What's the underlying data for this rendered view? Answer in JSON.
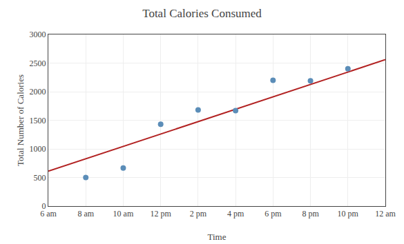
{
  "chart_data": {
    "type": "scatter",
    "title": "Total Calories Consumed",
    "xlabel": "Time",
    "ylabel": "Total Number of Calories",
    "xlim": [
      6,
      24
    ],
    "ylim": [
      0,
      3000
    ],
    "xticks": [
      {
        "value": 6,
        "label": "6 am"
      },
      {
        "value": 8,
        "label": "8 am"
      },
      {
        "value": 10,
        "label": "10 am"
      },
      {
        "value": 12,
        "label": "12 pm"
      },
      {
        "value": 14,
        "label": "2 pm"
      },
      {
        "value": 16,
        "label": "4 pm"
      },
      {
        "value": 18,
        "label": "6 pm"
      },
      {
        "value": 20,
        "label": "8 pm"
      },
      {
        "value": 22,
        "label": "10 pm"
      },
      {
        "value": 24,
        "label": "12 am"
      }
    ],
    "yticks": [
      0,
      500,
      1000,
      1500,
      2000,
      2500,
      3000
    ],
    "grid": true,
    "series": [
      {
        "type": "scatter",
        "color": "#5b8db8",
        "x": [
          8,
          10,
          12,
          14,
          16,
          18,
          20,
          22
        ],
        "values": [
          500,
          665,
          1430,
          1680,
          1670,
          2200,
          2190,
          2400
        ]
      },
      {
        "type": "line",
        "color": "#b22222",
        "x": [
          6,
          24
        ],
        "values": [
          610,
          2560
        ]
      }
    ]
  }
}
